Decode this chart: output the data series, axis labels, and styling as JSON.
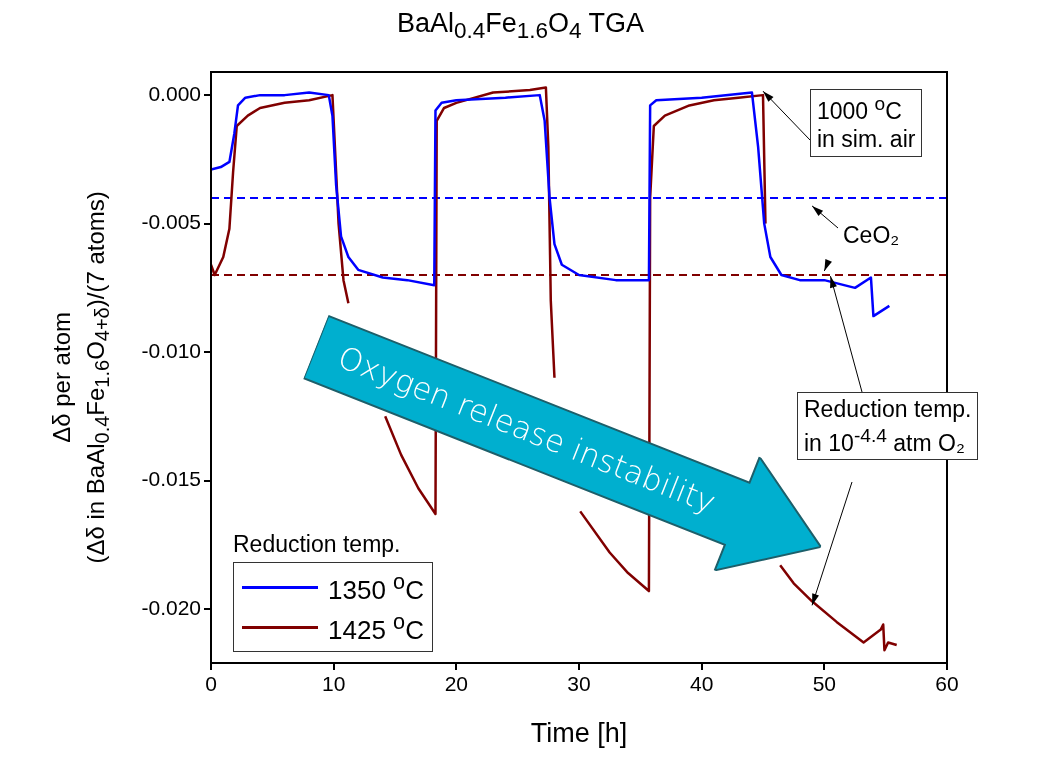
{
  "chart_data": {
    "type": "line",
    "title": "BaAl$_{0.4}$Fe$_{1.6}$O$_{4}$ TGA",
    "xlabel": "Time [h]",
    "ylabel": "Δδ per atom\n(Δδ in BaAl$_{0.4}$Fe$_{1.6}$O$_{4+δ}$)/(7 atoms)",
    "legend_title": "Reduction temp.",
    "legend": "bottom left",
    "grid": false,
    "marker": "none",
    "line_style": "solid",
    "xlim": [
      0,
      60
    ],
    "xticks": [
      0,
      10,
      20,
      30,
      40,
      50,
      60
    ],
    "ylim": [
      -0.0221,
      0.0009
    ],
    "yticks": [
      {
        "value": 0,
        "label": "0.000"
      },
      {
        "value": -0.005,
        "label": "-0.005"
      },
      {
        "value": -0.01,
        "label": "-0.010"
      },
      {
        "value": -0.015,
        "label": "-0.015"
      },
      {
        "value": -0.02,
        "label": "-0.020"
      }
    ],
    "series": [
      {
        "name": "1350 $^{o}$C",
        "color": "#0000ff",
        "x": [
          0,
          0.8,
          1.5,
          1.9,
          2.2,
          2.8,
          4,
          6,
          8,
          9.6,
          9.9,
          10.2,
          10.6,
          11.2,
          12,
          14,
          16,
          18.2,
          18.3,
          18.8,
          20,
          24,
          26.8,
          27.2,
          27.6,
          28,
          28.6,
          30,
          33,
          35.7,
          35.8,
          36.3,
          40,
          44.1,
          44.6,
          45.1,
          45.6,
          46.5,
          48,
          50,
          52.5,
          53.8,
          54.0,
          55.3
        ],
        "values": [
          -0.0029,
          -0.0028,
          -0.0026,
          -0.0015,
          -0.0004,
          -0.0001,
          0,
          0,
          0.0001,
          0,
          -0.0008,
          -0.0035,
          -0.0055,
          -0.0063,
          -0.0068,
          -0.0071,
          -0.0072,
          -0.0074,
          -0.0006,
          -0.0003,
          -0.0002,
          -0.0001,
          0,
          -0.001,
          -0.004,
          -0.0058,
          -0.0066,
          -0.007,
          -0.0072,
          -0.0072,
          -0.0004,
          -0.0002,
          -0.0001,
          0.0001,
          -0.002,
          -0.005,
          -0.0063,
          -0.007,
          -0.0072,
          -0.0072,
          -0.0075,
          -0.0071,
          -0.0086,
          -0.0082
        ]
      },
      {
        "name": "1425 $^{o}$C",
        "color": "#800000",
        "x": [
          0,
          0.3,
          1,
          1.5,
          1.8,
          2.1,
          3,
          4,
          6,
          8,
          9.9,
          10.1,
          10.4,
          10.8,
          11.2,
          12,
          13,
          14.2,
          15.5,
          16.9,
          18.3,
          18.4,
          19,
          20,
          23,
          26,
          27.3,
          27.5,
          27.7,
          28,
          28.5,
          29.3,
          30.1,
          32.5,
          34,
          35.7,
          35.8,
          36.1,
          37,
          39,
          41,
          43,
          45,
          45.2,
          45.4,
          45.6,
          46.4,
          47.5,
          49,
          51,
          53.2,
          54.6,
          54.8,
          54.9,
          55.2,
          55.9
        ],
        "values": [
          -0.0066,
          -0.007,
          -0.0063,
          -0.0052,
          -0.003,
          -0.0012,
          -0.0008,
          -0.0005,
          -0.0003,
          -0.0002,
          0,
          -0.002,
          -0.005,
          -0.0072,
          -0.0081,
          null,
          null,
          -0.0125,
          -0.014,
          -0.0153,
          -0.0163,
          -0.001,
          -0.0005,
          -0.0003,
          0.0001,
          0.0002,
          0.0003,
          -0.002,
          -0.008,
          -0.011,
          null,
          null,
          -0.0162,
          -0.0178,
          -0.0186,
          -0.0193,
          -0.004,
          -0.0012,
          -0.0008,
          -0.0004,
          -0.0002,
          -0.0001,
          0,
          -0.005,
          null,
          null,
          -0.0183,
          -0.019,
          -0.0197,
          -0.0205,
          -0.0213,
          -0.0208,
          -0.0206,
          -0.0216,
          -0.0213,
          -0.0214
        ]
      }
    ],
    "ref_lines": [
      {
        "axis": "y",
        "value": -0.004,
        "color": "#0000ff",
        "line_style": "dashed"
      },
      {
        "axis": "y",
        "value": -0.007,
        "color": "#800000",
        "line_style": "dashed"
      }
    ],
    "annotations": [
      {
        "text": "1000 $^{o}$C\nin sim. air",
        "x": 45,
        "y": 0
      },
      "CeO₂",
      {
        "text": "Reduction temp.\nin 10$^{-4.4}$ atm O₂",
        "x": 50.5,
        "y": -0.0072
      },
      "Oxygen release instability"
    ]
  }
}
